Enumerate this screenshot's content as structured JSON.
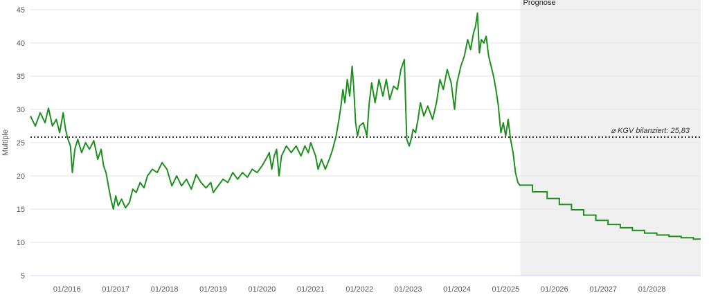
{
  "chart_data": {
    "type": "line",
    "ylabel": "Multiple",
    "ylim": [
      5,
      45
    ],
    "y_ticks": [
      5,
      10,
      15,
      20,
      25,
      30,
      35,
      40,
      45
    ],
    "x_range": [
      2015.25,
      2029.0
    ],
    "x_ticks": [
      {
        "label": "01/2016",
        "value": 2016.0
      },
      {
        "label": "01/2017",
        "value": 2017.0
      },
      {
        "label": "01/2018",
        "value": 2018.0
      },
      {
        "label": "01/2019",
        "value": 2019.0
      },
      {
        "label": "01/2020",
        "value": 2020.0
      },
      {
        "label": "01/2021",
        "value": 2021.0
      },
      {
        "label": "01/2022",
        "value": 2022.0
      },
      {
        "label": "01/2023",
        "value": 2023.0
      },
      {
        "label": "01/2024",
        "value": 2024.0
      },
      {
        "label": "01/2025",
        "value": 2025.0
      },
      {
        "label": "01/2026",
        "value": 2026.0
      },
      {
        "label": "01/2027",
        "value": 2027.0
      },
      {
        "label": "01/2028",
        "value": 2028.0
      }
    ],
    "grid": true,
    "colors": {
      "series": "#1e8f1e",
      "forecast_bg": "#f0f0f0",
      "grid": "#e6e6e6",
      "reference": "#333333"
    },
    "forecast": {
      "label": "Prognose",
      "start": 2025.3
    },
    "reference_line": {
      "label": "⌀ KGV bilanziert: 25,83",
      "value": 25.83
    },
    "series": [
      {
        "points": [
          [
            2015.25,
            29.0
          ],
          [
            2015.35,
            27.5
          ],
          [
            2015.45,
            29.5
          ],
          [
            2015.55,
            28.0
          ],
          [
            2015.62,
            30.2
          ],
          [
            2015.7,
            27.5
          ],
          [
            2015.78,
            28.5
          ],
          [
            2015.85,
            26.5
          ],
          [
            2015.92,
            29.5
          ],
          [
            2015.97,
            27.0
          ],
          [
            2016.02,
            25.5
          ],
          [
            2016.07,
            24.5
          ],
          [
            2016.11,
            20.5
          ],
          [
            2016.16,
            24.0
          ],
          [
            2016.22,
            25.5
          ],
          [
            2016.3,
            23.5
          ],
          [
            2016.38,
            25.0
          ],
          [
            2016.46,
            24.0
          ],
          [
            2016.55,
            25.3
          ],
          [
            2016.63,
            22.5
          ],
          [
            2016.7,
            24.0
          ],
          [
            2016.75,
            21.5
          ],
          [
            2016.8,
            20.5
          ],
          [
            2016.85,
            18.5
          ],
          [
            2016.9,
            16.5
          ],
          [
            2016.95,
            15.0
          ],
          [
            2017.0,
            17.0
          ],
          [
            2017.05,
            15.5
          ],
          [
            2017.12,
            16.5
          ],
          [
            2017.2,
            15.2
          ],
          [
            2017.28,
            16.0
          ],
          [
            2017.35,
            18.0
          ],
          [
            2017.42,
            17.5
          ],
          [
            2017.5,
            19.0
          ],
          [
            2017.58,
            18.2
          ],
          [
            2017.65,
            20.0
          ],
          [
            2017.75,
            21.0
          ],
          [
            2017.85,
            20.5
          ],
          [
            2017.95,
            22.0
          ],
          [
            2018.05,
            21.0
          ],
          [
            2018.15,
            18.5
          ],
          [
            2018.25,
            20.0
          ],
          [
            2018.35,
            18.5
          ],
          [
            2018.45,
            19.5
          ],
          [
            2018.55,
            18.0
          ],
          [
            2018.65,
            20.2
          ],
          [
            2018.75,
            19.0
          ],
          [
            2018.85,
            18.2
          ],
          [
            2018.95,
            19.0
          ],
          [
            2019.0,
            17.5
          ],
          [
            2019.1,
            18.5
          ],
          [
            2019.2,
            19.5
          ],
          [
            2019.3,
            19.0
          ],
          [
            2019.4,
            20.5
          ],
          [
            2019.5,
            19.5
          ],
          [
            2019.6,
            20.5
          ],
          [
            2019.7,
            19.8
          ],
          [
            2019.8,
            21.0
          ],
          [
            2019.9,
            20.5
          ],
          [
            2020.0,
            21.5
          ],
          [
            2020.08,
            22.5
          ],
          [
            2020.15,
            23.5
          ],
          [
            2020.2,
            21.0
          ],
          [
            2020.25,
            23.0
          ],
          [
            2020.3,
            24.0
          ],
          [
            2020.35,
            20.0
          ],
          [
            2020.4,
            23.0
          ],
          [
            2020.5,
            24.5
          ],
          [
            2020.6,
            23.5
          ],
          [
            2020.7,
            24.5
          ],
          [
            2020.8,
            23.0
          ],
          [
            2020.88,
            24.5
          ],
          [
            2020.95,
            23.5
          ],
          [
            2021.0,
            25.0
          ],
          [
            2021.05,
            24.0
          ],
          [
            2021.1,
            23.0
          ],
          [
            2021.15,
            21.0
          ],
          [
            2021.22,
            22.5
          ],
          [
            2021.3,
            21.0
          ],
          [
            2021.38,
            22.5
          ],
          [
            2021.45,
            24.0
          ],
          [
            2021.52,
            26.0
          ],
          [
            2021.58,
            28.5
          ],
          [
            2021.62,
            30.5
          ],
          [
            2021.66,
            33.0
          ],
          [
            2021.7,
            31.0
          ],
          [
            2021.75,
            34.5
          ],
          [
            2021.8,
            32.0
          ],
          [
            2021.85,
            36.5
          ],
          [
            2021.88,
            33.5
          ],
          [
            2021.92,
            28.0
          ],
          [
            2021.96,
            26.0
          ],
          [
            2022.0,
            27.5
          ],
          [
            2022.08,
            28.0
          ],
          [
            2022.15,
            26.0
          ],
          [
            2022.2,
            31.0
          ],
          [
            2022.25,
            34.0
          ],
          [
            2022.32,
            31.0
          ],
          [
            2022.4,
            34.5
          ],
          [
            2022.48,
            32.0
          ],
          [
            2022.55,
            34.5
          ],
          [
            2022.62,
            31.5
          ],
          [
            2022.7,
            33.5
          ],
          [
            2022.78,
            33.0
          ],
          [
            2022.85,
            36.0
          ],
          [
            2022.92,
            37.5
          ],
          [
            2022.95,
            30.0
          ],
          [
            2022.97,
            25.5
          ],
          [
            2023.02,
            24.5
          ],
          [
            2023.06,
            25.5
          ],
          [
            2023.1,
            27.0
          ],
          [
            2023.15,
            26.5
          ],
          [
            2023.2,
            28.5
          ],
          [
            2023.25,
            31.0
          ],
          [
            2023.32,
            29.0
          ],
          [
            2023.4,
            30.5
          ],
          [
            2023.5,
            28.5
          ],
          [
            2023.58,
            31.0
          ],
          [
            2023.65,
            34.5
          ],
          [
            2023.72,
            33.0
          ],
          [
            2023.8,
            36.0
          ],
          [
            2023.88,
            34.0
          ],
          [
            2023.95,
            30.0
          ],
          [
            2024.0,
            34.0
          ],
          [
            2024.08,
            36.5
          ],
          [
            2024.15,
            38.0
          ],
          [
            2024.22,
            40.5
          ],
          [
            2024.28,
            39.0
          ],
          [
            2024.34,
            41.5
          ],
          [
            2024.38,
            42.5
          ],
          [
            2024.42,
            44.5
          ],
          [
            2024.46,
            38.5
          ],
          [
            2024.5,
            40.5
          ],
          [
            2024.55,
            40.0
          ],
          [
            2024.6,
            41.0
          ],
          [
            2024.65,
            38.0
          ],
          [
            2024.7,
            36.5
          ],
          [
            2024.75,
            35.0
          ],
          [
            2024.8,
            33.0
          ],
          [
            2024.85,
            30.5
          ],
          [
            2024.9,
            26.5
          ],
          [
            2024.95,
            28.0
          ],
          [
            2025.0,
            26.0
          ],
          [
            2025.05,
            28.5
          ],
          [
            2025.1,
            25.5
          ],
          [
            2025.15,
            23.5
          ],
          [
            2025.2,
            20.5
          ],
          [
            2025.25,
            19.0
          ],
          [
            2025.3,
            18.5
          ]
        ],
        "forecast_steps": [
          [
            2025.3,
            18.6
          ],
          [
            2025.55,
            17.6
          ],
          [
            2025.85,
            16.6
          ],
          [
            2026.1,
            15.7
          ],
          [
            2026.35,
            14.9
          ],
          [
            2026.6,
            14.1
          ],
          [
            2026.85,
            13.3
          ],
          [
            2027.1,
            12.7
          ],
          [
            2027.35,
            12.2
          ],
          [
            2027.6,
            11.8
          ],
          [
            2027.85,
            11.4
          ],
          [
            2028.1,
            11.1
          ],
          [
            2028.35,
            10.9
          ],
          [
            2028.6,
            10.7
          ],
          [
            2028.85,
            10.5
          ],
          [
            2029.0,
            10.5
          ]
        ]
      }
    ]
  }
}
